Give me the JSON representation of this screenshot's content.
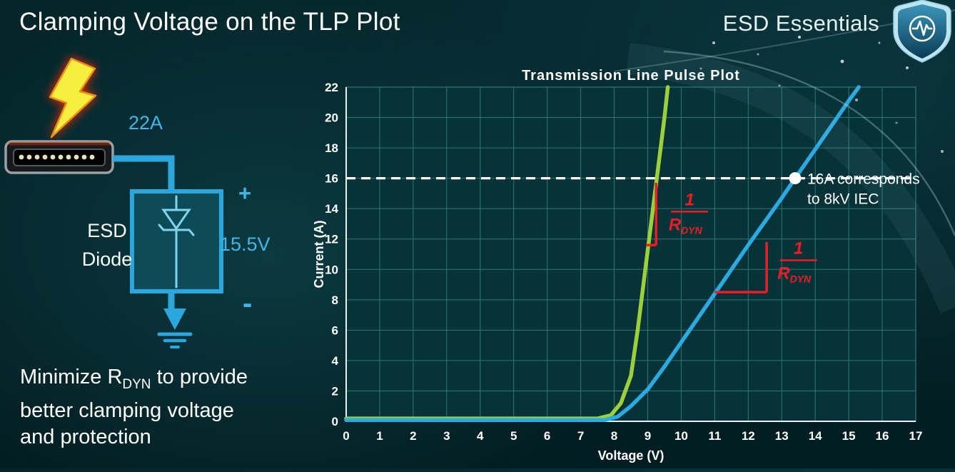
{
  "header": {
    "title": "Clamping Voltage on the TLP Plot",
    "brand": "ESD Essentials"
  },
  "diagram": {
    "surge_current": "22A",
    "clamp_voltage": "15.5V",
    "polarity_plus": "+",
    "polarity_minus": "-",
    "device_line1": "ESD",
    "device_line2": "Diode"
  },
  "note": {
    "pre": "Minimize R",
    "sub": "DYN",
    "post": " to provide",
    "line2": "better clamping voltage",
    "line3": "and protection"
  },
  "chart_data": {
    "type": "line",
    "title": "Transmission Line Pulse Plot",
    "xlabel": "Voltage (V)",
    "ylabel": "Current (A)",
    "xlim": [
      0,
      17
    ],
    "ylim": [
      0,
      22
    ],
    "xtick_step": 1,
    "ytick_step": 2,
    "grid": true,
    "colors": {
      "plot_bg": "#063238",
      "grid": "#2a7878",
      "axis": "#e8f2f2",
      "text": "#ffffff",
      "annotation_red": "#ee1c25"
    },
    "series": [
      {
        "name": "low-rdyn-diode",
        "color": "#9bcf3c",
        "width": 5.5,
        "points": [
          [
            0,
            0.18
          ],
          [
            7.5,
            0.18
          ],
          [
            7.9,
            0.4
          ],
          [
            8.2,
            1.2
          ],
          [
            8.5,
            3
          ],
          [
            8.7,
            6
          ],
          [
            8.9,
            9.5
          ],
          [
            9.1,
            13
          ],
          [
            9.3,
            16.5
          ],
          [
            9.5,
            20
          ],
          [
            9.6,
            22
          ]
        ]
      },
      {
        "name": "high-rdyn-diode",
        "color": "#2aaae1",
        "width": 5.5,
        "points": [
          [
            0,
            0.08
          ],
          [
            7.7,
            0.08
          ],
          [
            8.1,
            0.3
          ],
          [
            8.5,
            1.0
          ],
          [
            9.0,
            2.1
          ],
          [
            9.5,
            3.6
          ],
          [
            10,
            5.2
          ],
          [
            11,
            8.4
          ],
          [
            12,
            11.6
          ],
          [
            13,
            14.7
          ],
          [
            13.4,
            16
          ],
          [
            14,
            17.9
          ],
          [
            15,
            21.1
          ],
          [
            15.3,
            22
          ]
        ]
      }
    ],
    "threshold": {
      "y": 16,
      "color": "#ffffff",
      "dash": "13 8",
      "width": 3.2
    },
    "marker": {
      "x": 13.4,
      "y": 16,
      "radius": 8.5,
      "color": "#ffffff"
    },
    "callout": {
      "lines": [
        "16A corresponds",
        "to 8kV IEC"
      ],
      "color": "#ffffff"
    },
    "slope_marks": [
      {
        "name": "green-rdyn-mark",
        "color": "#ee1c25",
        "v_line": {
          "x": 9.25,
          "y1": 11.6,
          "y2": 15.7
        },
        "h_line": {
          "y": 11.6,
          "x1": 8.95,
          "x2": 9.25
        },
        "label": {
          "x": 10.25,
          "y": 13.8,
          "num": "1",
          "den": "R",
          "den_sub": "DYN"
        }
      },
      {
        "name": "blue-rdyn-mark",
        "color": "#ee1c25",
        "h_line": {
          "y": 8.5,
          "x1": 11.0,
          "x2": 12.55
        },
        "v_line": {
          "x": 12.55,
          "y1": 8.5,
          "y2": 11.8
        },
        "label": {
          "x": 13.5,
          "y": 10.6,
          "num": "1",
          "den": "R",
          "den_sub": "DYN"
        }
      }
    ]
  }
}
